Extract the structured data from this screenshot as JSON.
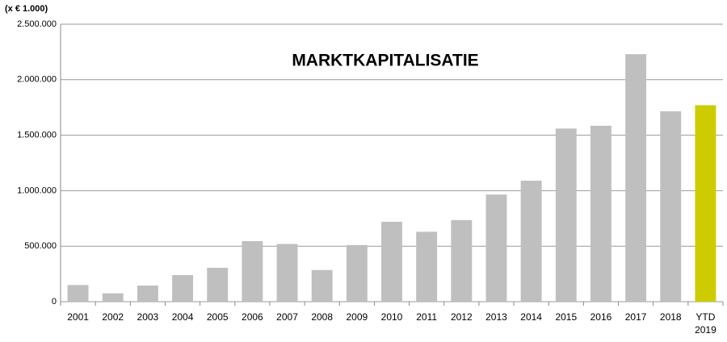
{
  "chart_data": {
    "type": "bar",
    "title": "MARKTKAPITALISATIE",
    "y_axis_label": "(x € 1.000)",
    "categories": [
      "2001",
      "2002",
      "2003",
      "2004",
      "2005",
      "2006",
      "2007",
      "2008",
      "2009",
      "2010",
      "2011",
      "2012",
      "2013",
      "2014",
      "2015",
      "2016",
      "2017",
      "2018",
      "YTD 2019"
    ],
    "values": [
      150000,
      75000,
      145000,
      240000,
      305000,
      545000,
      520000,
      285000,
      510000,
      720000,
      630000,
      735000,
      965000,
      1090000,
      1560000,
      1585000,
      2230000,
      1715000,
      1770000
    ],
    "colors": [
      "#bfbfbf",
      "#bfbfbf",
      "#bfbfbf",
      "#bfbfbf",
      "#bfbfbf",
      "#bfbfbf",
      "#bfbfbf",
      "#bfbfbf",
      "#bfbfbf",
      "#bfbfbf",
      "#bfbfbf",
      "#bfbfbf",
      "#bfbfbf",
      "#bfbfbf",
      "#bfbfbf",
      "#bfbfbf",
      "#bfbfbf",
      "#bfbfbf",
      "#cccc00"
    ],
    "ylim": [
      0,
      2500000
    ],
    "yticks": [
      0,
      {
        "value": 500000,
        "label": "500.000"
      },
      {
        "value": 1000000,
        "label": "1.000.000"
      },
      {
        "value": 1500000,
        "label": "1.500.000"
      },
      {
        "value": 2000000,
        "label": "2.000.000"
      },
      {
        "value": 2500000,
        "label": "2.500.000"
      }
    ],
    "grid": true
  }
}
